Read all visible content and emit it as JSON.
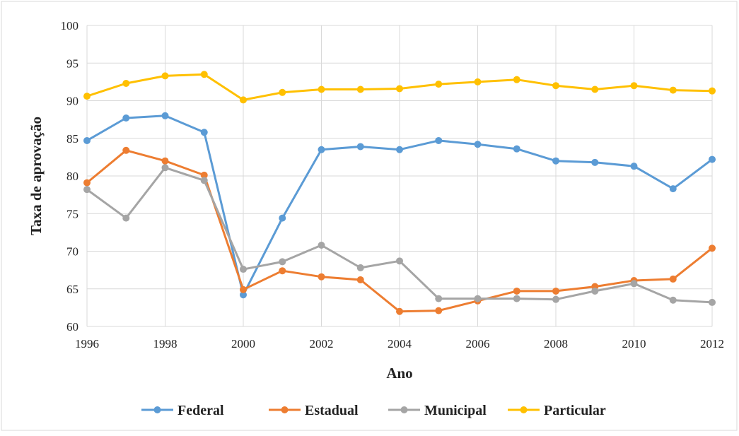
{
  "chart_data": {
    "type": "line",
    "xlabel": "Ano",
    "ylabel": "Taxa de aprovação",
    "xlim": [
      1996,
      2012
    ],
    "ylim": [
      60,
      100
    ],
    "x": [
      1996,
      1997,
      1998,
      1999,
      2000,
      2001,
      2002,
      2003,
      2004,
      2005,
      2006,
      2007,
      2008,
      2009,
      2010,
      2011,
      2012
    ],
    "x_tick_labels": [
      "1996",
      "1998",
      "2000",
      "2002",
      "2004",
      "2006",
      "2008",
      "2010",
      "2012"
    ],
    "y_tick_labels": [
      "60",
      "65",
      "70",
      "75",
      "80",
      "85",
      "90",
      "95",
      "100"
    ],
    "grid": true,
    "legend_position": "bottom",
    "series": [
      {
        "name": "Federal",
        "color": "#5B9BD5",
        "values": [
          84.7,
          87.7,
          88.0,
          85.8,
          64.2,
          74.4,
          83.5,
          83.9,
          83.5,
          84.7,
          84.2,
          83.6,
          82.0,
          81.8,
          81.3,
          78.3,
          82.2
        ]
      },
      {
        "name": "Estadual",
        "color": "#ED7D31",
        "values": [
          79.1,
          83.4,
          82.0,
          80.1,
          64.9,
          67.4,
          66.6,
          66.2,
          62.0,
          62.1,
          63.4,
          64.7,
          64.7,
          65.3,
          66.1,
          66.3,
          70.4
        ]
      },
      {
        "name": "Municipal",
        "color": "#A5A5A5",
        "values": [
          78.2,
          74.4,
          81.1,
          79.4,
          67.6,
          68.6,
          70.8,
          67.8,
          68.7,
          63.7,
          63.7,
          63.7,
          63.6,
          64.7,
          65.7,
          63.5,
          63.2
        ]
      },
      {
        "name": "Particular",
        "color": "#FFC000",
        "values": [
          90.6,
          92.3,
          93.3,
          93.5,
          90.1,
          91.1,
          91.5,
          91.5,
          91.6,
          92.2,
          92.5,
          92.8,
          92.0,
          91.5,
          92.0,
          91.4,
          91.3
        ]
      }
    ]
  }
}
